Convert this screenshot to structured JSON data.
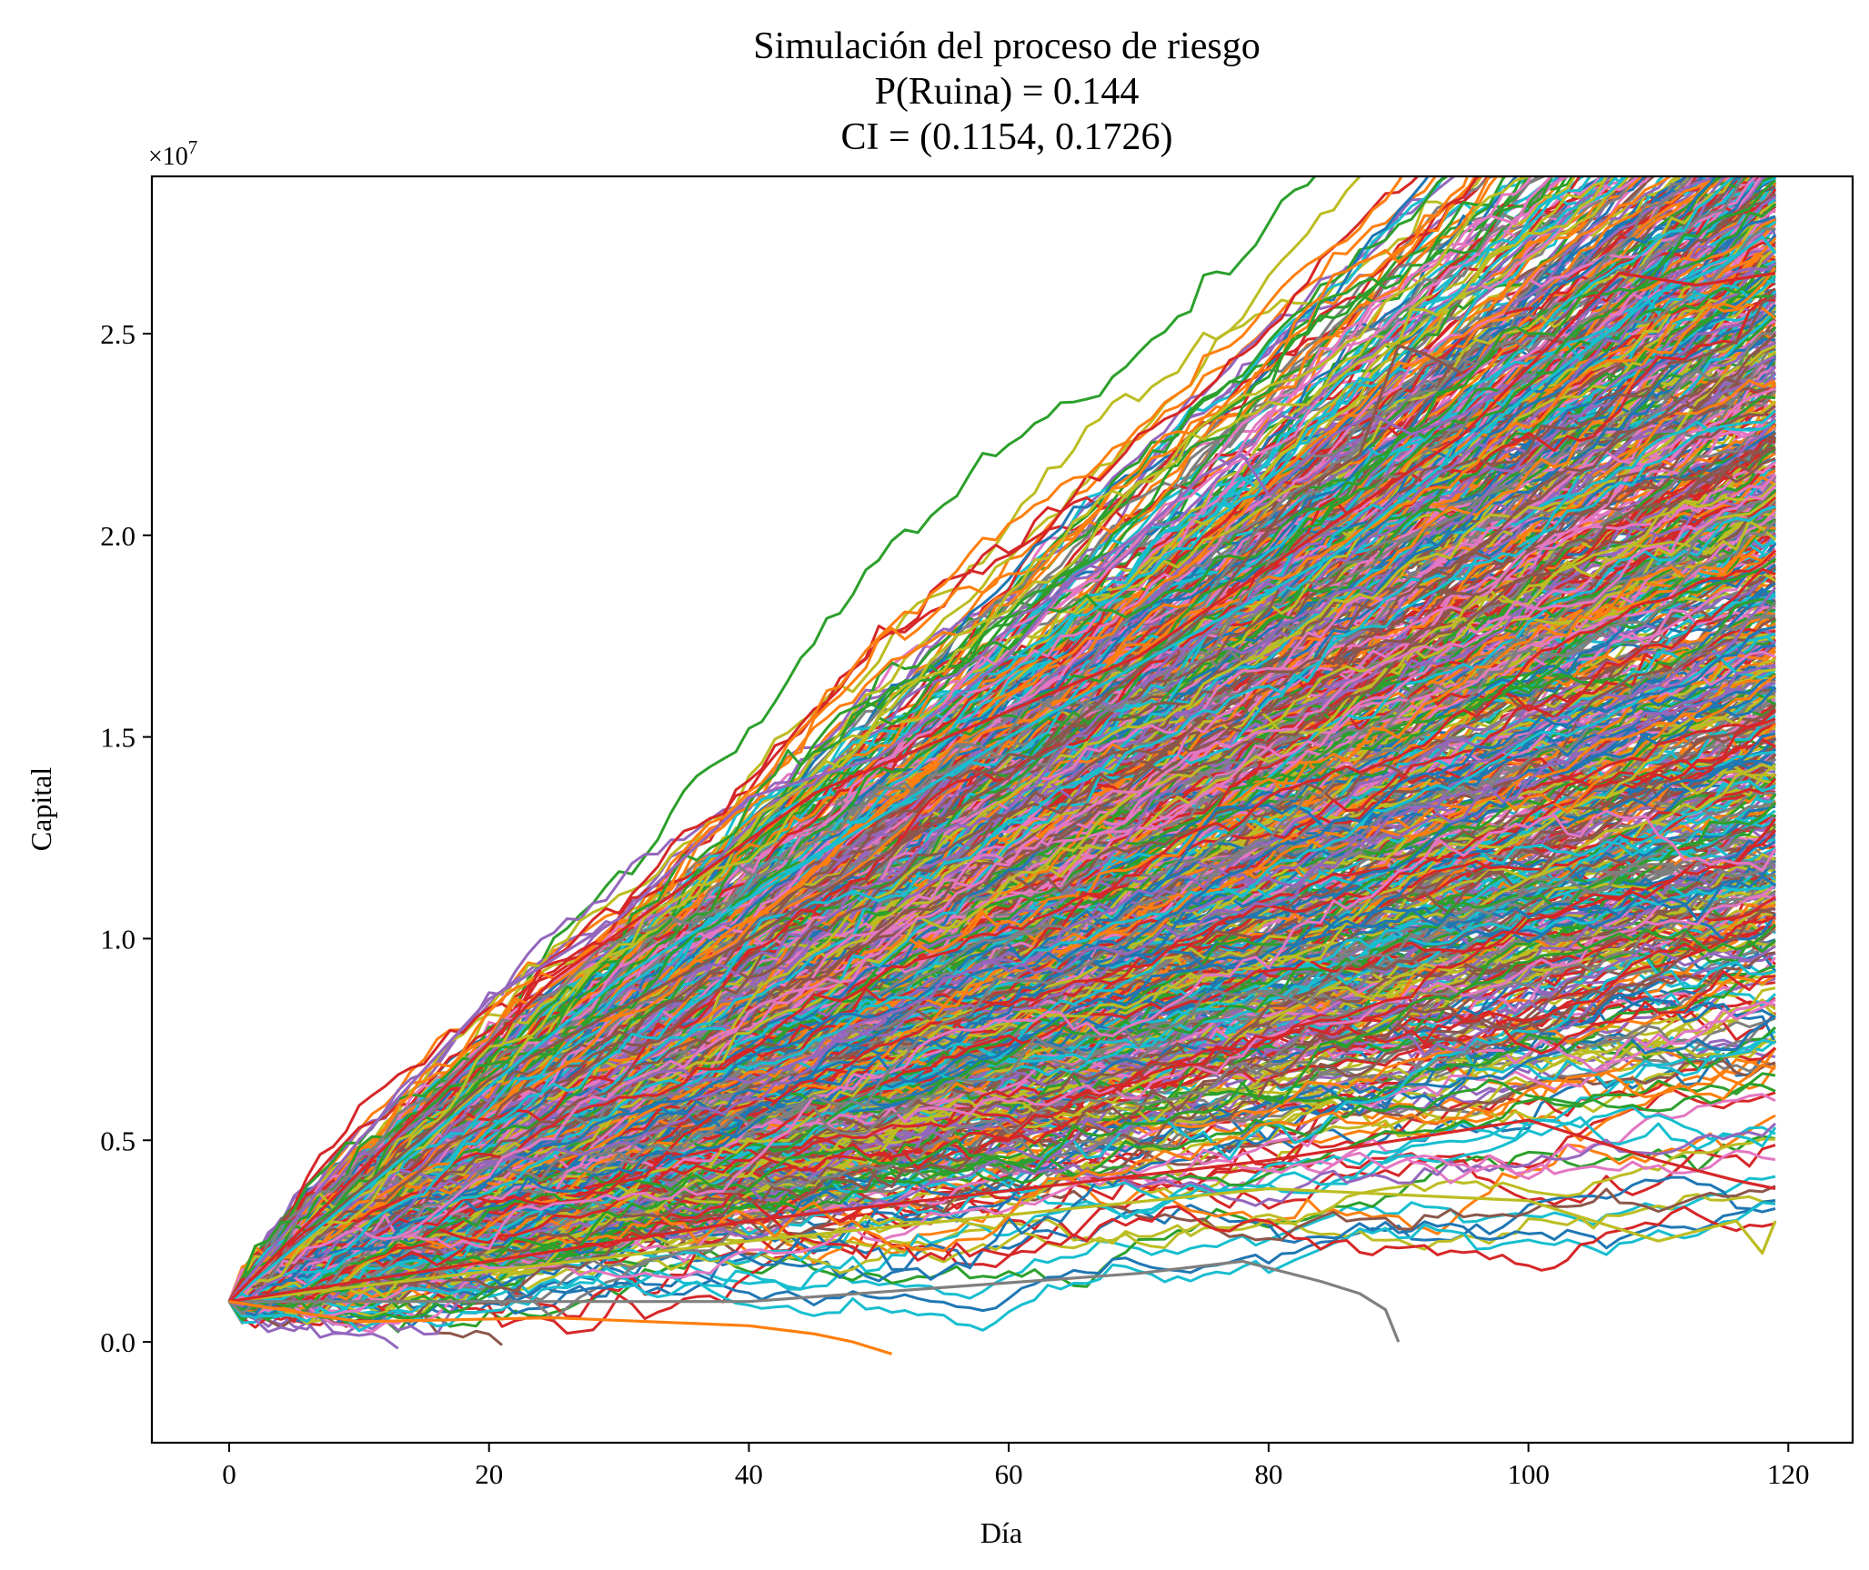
{
  "chart_data": {
    "type": "line",
    "title_lines": [
      "Simulación del proceso de riesgo",
      "P(Ruina) = 0.144",
      "CI = (0.1154, 0.1726)"
    ],
    "xlabel": "Día",
    "ylabel": "Capital",
    "y_multiplier": "×10",
    "y_multiplier_exponent": "7",
    "xlim": [
      -5.95,
      124.95
    ],
    "ylim": [
      -0.25,
      2.89
    ],
    "y_scale_factor": 10000000,
    "x_ticks": [
      {
        "value": 0,
        "label": "0"
      },
      {
        "value": 20,
        "label": "20"
      },
      {
        "value": 40,
        "label": "40"
      },
      {
        "value": 60,
        "label": "60"
      },
      {
        "value": 80,
        "label": "80"
      },
      {
        "value": 100,
        "label": "100"
      },
      {
        "value": 120,
        "label": "120"
      }
    ],
    "y_ticks": [
      {
        "value": 0.0,
        "label": "0.0"
      },
      {
        "value": 0.5,
        "label": "0.5"
      },
      {
        "value": 1.0,
        "label": "1.0"
      },
      {
        "value": 1.5,
        "label": "1.5"
      },
      {
        "value": 2.0,
        "label": "2.0"
      },
      {
        "value": 2.5,
        "label": "2.5"
      }
    ],
    "grid": false,
    "legend": false,
    "palette": [
      "#1f77b4",
      "#ff7f0e",
      "#2ca02c",
      "#d62728",
      "#9467bd",
      "#8c564b",
      "#e377c2",
      "#7f7f7f",
      "#bcbd22",
      "#17becf"
    ],
    "simulation": {
      "n_paths": 1000,
      "n_days": 120,
      "start_value": 0.1,
      "ruin_probability": 0.144
    },
    "highlighted_paths": [
      {
        "color": "#9467bd",
        "x": [
          0,
          10,
          20,
          30,
          40,
          50,
          60,
          65,
          70,
          75,
          78,
          80,
          85,
          88,
          91,
          95,
          100
        ],
        "y": [
          0.1,
          0.5,
          0.85,
          1.05,
          1.35,
          1.45,
          1.7,
          1.9,
          2.0,
          2.15,
          2.2,
          2.1,
          2.25,
          2.3,
          2.25,
          2.3,
          2.4
        ]
      },
      {
        "color": "#8c564b",
        "x": [
          0,
          20,
          40,
          60,
          75,
          82,
          87,
          90,
          92,
          95
        ],
        "y": [
          0.1,
          0.65,
          1.0,
          1.4,
          1.8,
          2.1,
          2.2,
          2.47,
          2.45,
          2.4
        ]
      },
      {
        "color": "#17becf",
        "x": [
          0,
          30,
          60,
          85,
          100,
          110,
          115,
          118,
          119
        ],
        "y": [
          0.1,
          0.9,
          1.5,
          1.95,
          2.35,
          2.6,
          2.67,
          2.74,
          2.7
        ]
      },
      {
        "color": "#d62728",
        "x": [
          0,
          25,
          45,
          70,
          95,
          107,
          113,
          119
        ],
        "y": [
          0.1,
          0.9,
          1.36,
          1.7,
          2.25,
          2.65,
          2.62,
          2.65
        ]
      },
      {
        "color": "#bcbd22",
        "x": [
          0,
          40,
          80,
          100,
          110,
          116,
          118,
          119
        ],
        "y": [
          0.1,
          0.25,
          0.38,
          0.35,
          0.25,
          0.3,
          0.22,
          0.3
        ]
      },
      {
        "color": "#7f7f7f",
        "x": [
          0,
          40,
          70,
          78,
          84,
          87,
          89,
          90
        ],
        "y": [
          0.1,
          0.1,
          0.17,
          0.2,
          0.15,
          0.12,
          0.08,
          0.0
        ]
      },
      {
        "color": "#d62728",
        "x": [
          0,
          40,
          80,
          100,
          110,
          116,
          119
        ],
        "y": [
          0.1,
          0.3,
          0.45,
          0.55,
          0.45,
          0.4,
          0.38
        ]
      },
      {
        "color": "#ff7f0e",
        "x": [
          0,
          10,
          25,
          40,
          45,
          48,
          51
        ],
        "y": [
          0.1,
          0.05,
          0.06,
          0.04,
          0.02,
          0.0,
          -0.03
        ]
      }
    ]
  }
}
